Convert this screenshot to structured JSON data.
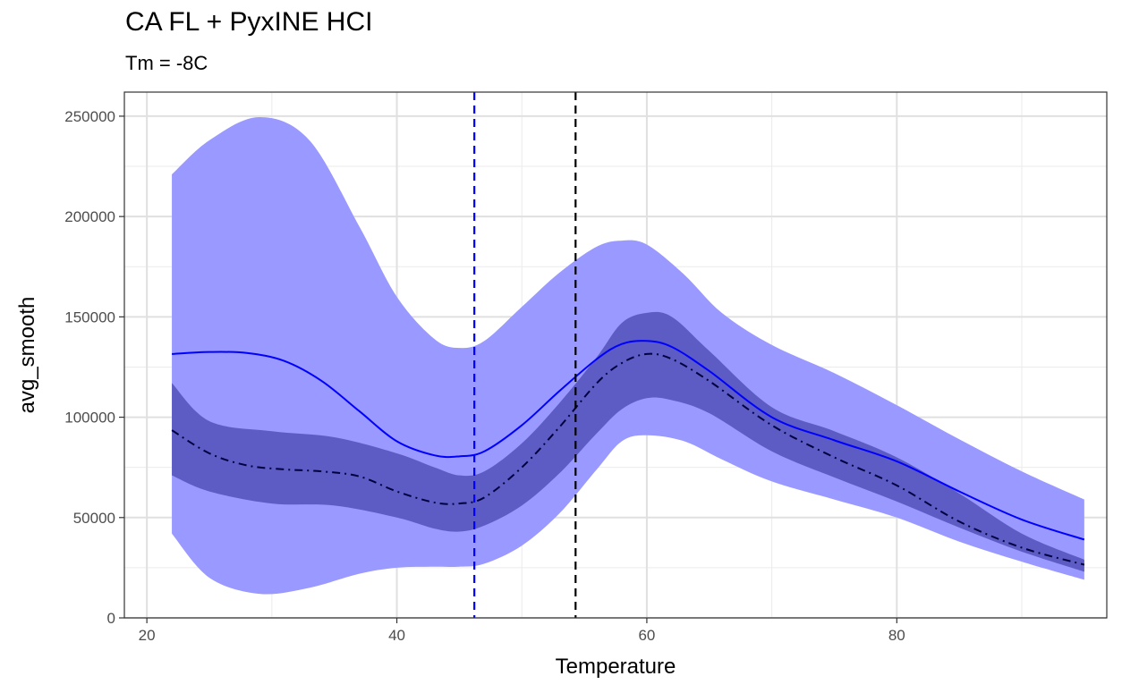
{
  "chart_data": {
    "type": "line",
    "title": "CA FL + PyxINE HCI",
    "subtitle": "Tm = -8C",
    "xlabel": "Temperature",
    "ylabel": "avg_smooth",
    "xlim": [
      18.2,
      96.8
    ],
    "ylim": [
      0,
      262000
    ],
    "x_ticks": [
      20,
      40,
      60,
      80
    ],
    "x_tick_labels": [
      "20",
      "40",
      "60",
      "80"
    ],
    "y_ticks": [
      0,
      50000,
      100000,
      150000,
      200000,
      250000
    ],
    "y_tick_labels": [
      "0",
      "50000",
      "100000",
      "150000",
      "200000",
      "250000"
    ],
    "grid": true,
    "bands": [
      {
        "color": "#9999ff",
        "x": [
          22,
          25,
          29,
          33,
          37,
          40,
          43,
          45,
          47,
          50,
          53,
          56,
          58,
          60,
          63,
          66,
          70,
          75,
          80,
          85,
          90,
          95
        ],
        "upper": [
          221000,
          238000,
          249500,
          238000,
          195000,
          160000,
          139000,
          134500,
          138000,
          155000,
          172000,
          185000,
          188000,
          186000,
          171000,
          152000,
          136000,
          122000,
          106000,
          89000,
          73000,
          59000
        ],
        "lower": [
          42000,
          20000,
          12000,
          15000,
          22000,
          25000,
          25500,
          25500,
          27000,
          36000,
          52000,
          74000,
          88000,
          91000,
          88000,
          79000,
          68000,
          59000,
          50000,
          38000,
          28000,
          19000
        ]
      },
      {
        "color": "#5c5cc4",
        "x": [
          22,
          25,
          30,
          35,
          40,
          43,
          45,
          47,
          50,
          53,
          56,
          58,
          60,
          62,
          65,
          70,
          75,
          80,
          85,
          90,
          95
        ],
        "upper": [
          117000,
          98000,
          93000,
          90000,
          82000,
          75000,
          71000,
          73000,
          87000,
          107000,
          130000,
          147000,
          152000,
          150000,
          133000,
          105000,
          93000,
          80000,
          62000,
          42000,
          29000
        ],
        "lower": [
          71000,
          63000,
          57000,
          56000,
          50000,
          44500,
          43000,
          46000,
          56000,
          72000,
          92000,
          104000,
          109500,
          108500,
          102000,
          83000,
          70000,
          58000,
          45000,
          33000,
          23000
        ]
      }
    ],
    "series": [
      {
        "color": "#0000ff",
        "dash": "solid",
        "x": [
          22,
          25,
          28,
          31,
          34,
          37,
          40,
          43,
          45,
          47,
          50,
          53,
          56,
          58,
          60,
          62,
          65,
          70,
          75,
          80,
          85,
          90,
          95
        ],
        "y": [
          131500,
          132500,
          132000,
          128000,
          118000,
          103000,
          88000,
          81000,
          80500,
          83000,
          96000,
          113000,
          129000,
          136500,
          138000,
          135000,
          123000,
          100000,
          88500,
          78000,
          63000,
          49000,
          39000
        ]
      },
      {
        "color": "#000040",
        "dash": "dashdot",
        "x": [
          22,
          25,
          28,
          31,
          34,
          37,
          40,
          43,
          45,
          47,
          50,
          53,
          56,
          58,
          60,
          62,
          65,
          70,
          75,
          80,
          85,
          90,
          95
        ],
        "y": [
          93500,
          82000,
          76000,
          74000,
          73000,
          70500,
          63000,
          57500,
          57000,
          60000,
          75000,
          95000,
          117000,
          127000,
          131500,
          129000,
          118000,
          96000,
          80000,
          66000,
          48000,
          35000,
          26500
        ]
      }
    ],
    "vlines": [
      {
        "x": 46.2,
        "color": "#0000ff",
        "dash": "dashed"
      },
      {
        "x": 54.3,
        "color": "#000000",
        "dash": "dashed"
      }
    ]
  }
}
